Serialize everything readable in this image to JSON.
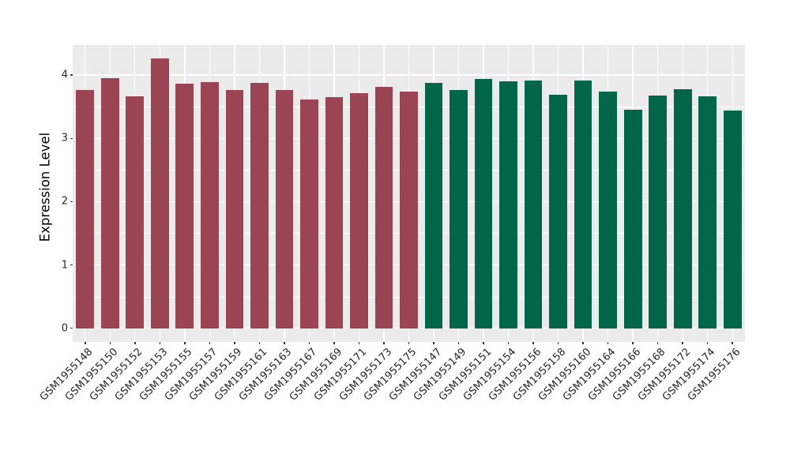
{
  "figure": {
    "background": "#FFFFFF",
    "panel_background": "#EBEBEB",
    "gridline_color": "#FFFFFF",
    "tick_color": "#333333",
    "axis_text_color": "#262626"
  },
  "chart_data": {
    "type": "bar",
    "title": "",
    "xlabel": "",
    "ylabel": "Expression Level",
    "grid": true,
    "legend_position": "none",
    "x_label_rotation": 45,
    "ylim": [
      -0.216,
      4.476
    ],
    "yticks": [
      0,
      1,
      2,
      3,
      4
    ],
    "ytick_labels": [
      "0",
      "1",
      "2",
      "3",
      "4"
    ],
    "yticks_minor": [
      0.5,
      1.5,
      2.5,
      3.5
    ],
    "group_colors": {
      "maroon": "#9A4454",
      "green": "#006647"
    },
    "categories": [
      "GSM1955148",
      "GSM1955150",
      "GSM1955152",
      "GSM1955153",
      "GSM1955155",
      "GSM1955157",
      "GSM1955159",
      "GSM1955161",
      "GSM1955163",
      "GSM1955167",
      "GSM1955169",
      "GSM1955171",
      "GSM1955173",
      "GSM1955175",
      "GSM1955147",
      "GSM1955149",
      "GSM1955151",
      "GSM1955154",
      "GSM1955156",
      "GSM1955158",
      "GSM1955160",
      "GSM1955164",
      "GSM1955166",
      "GSM1955168",
      "GSM1955172",
      "GSM1955174",
      "GSM1955176"
    ],
    "values": [
      3.77,
      3.95,
      3.66,
      4.26,
      3.87,
      3.89,
      3.77,
      3.88,
      3.77,
      3.62,
      3.65,
      3.72,
      3.81,
      3.74,
      3.88,
      3.77,
      3.94,
      3.9,
      3.92,
      3.69,
      3.92,
      3.74,
      3.45,
      3.68,
      3.78,
      3.67,
      3.44
    ],
    "bar_colors": [
      "#9A4454",
      "#9A4454",
      "#9A4454",
      "#9A4454",
      "#9A4454",
      "#9A4454",
      "#9A4454",
      "#9A4454",
      "#9A4454",
      "#9A4454",
      "#9A4454",
      "#9A4454",
      "#9A4454",
      "#9A4454",
      "#006647",
      "#006647",
      "#006647",
      "#006647",
      "#006647",
      "#006647",
      "#006647",
      "#006647",
      "#006647",
      "#006647",
      "#006647",
      "#006647",
      "#006647"
    ]
  }
}
